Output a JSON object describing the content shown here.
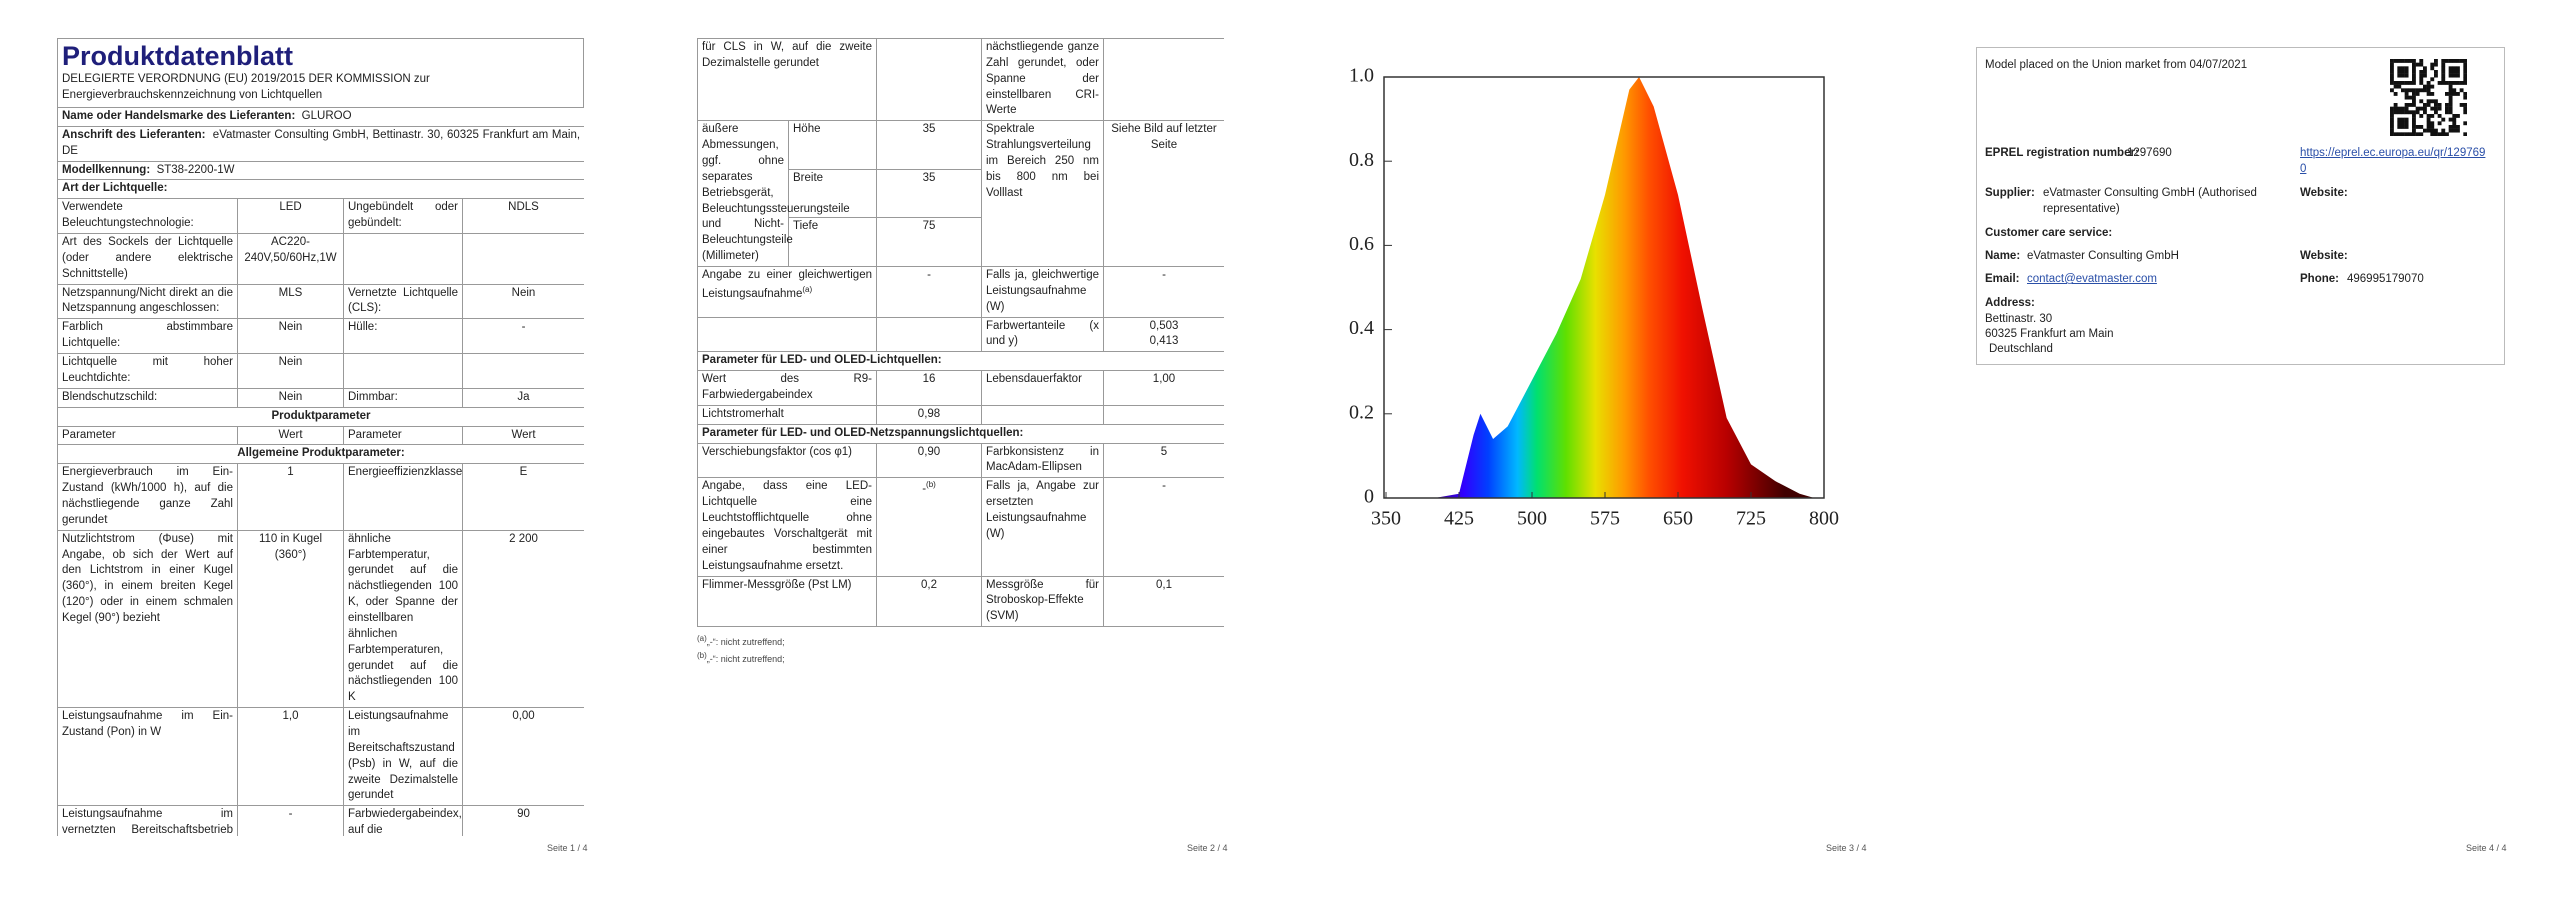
{
  "chart_data": {
    "type": "area",
    "x": [
      400,
      425,
      440,
      447,
      460,
      475,
      500,
      525,
      550,
      575,
      600,
      610,
      625,
      650,
      675,
      700,
      725,
      750,
      775,
      790
    ],
    "values": [
      0,
      0.01,
      0.15,
      0.2,
      0.14,
      0.17,
      0.28,
      0.39,
      0.52,
      0.72,
      0.97,
      1.0,
      0.93,
      0.72,
      0.45,
      0.19,
      0.08,
      0.04,
      0.01,
      0
    ],
    "xlim": [
      350,
      800
    ],
    "xticks": [
      350,
      425,
      500,
      575,
      650,
      725,
      800
    ],
    "ylim": [
      0,
      1
    ],
    "yticks": [
      {
        "value": 1,
        "label": "1.0"
      },
      0.8,
      0.6,
      0.4,
      0.2,
      0
    ]
  },
  "pages": [
    {
      "title": "Produktdatenblatt",
      "subtitle": "DELEGIERTE VERORDNUNG (EU) 2019/2015 DER KOMMISSION zur Energieverbrauchskennzeichnung von Lichtquellen",
      "rows": [
        {
          "label": "Name oder Handelsmarke des Lieferanten:",
          "value": "GLUROO"
        },
        {
          "label": "Anschrift des Lieferanten:",
          "value": "eVatmaster Consulting GmbH, Bettinastr. 30, 60325 Frankfurt am Main, DE"
        },
        {
          "label": "Modellkennung:",
          "value": "ST38-2200-1W"
        },
        {
          "heading": "Art der Lichtquelle:"
        },
        [
          "Verwendete Beleuchtungstechnologie:",
          "LED",
          "Ungebündelt oder gebündelt:",
          "NDLS"
        ],
        [
          "Art des Sockels der Lichtquelle (oder andere elektrische Schnittstelle)",
          "AC220-240V,50/60Hz,1W",
          null,
          null
        ],
        [
          "Netzspannung/Nicht direkt an die Netzspannung angeschlossen:",
          "MLS",
          "Vernetzte Lichtquelle (CLS):",
          "Nein"
        ],
        [
          "Farblich abstimmbare Lichtquelle:",
          "Nein",
          "Hülle:",
          "-"
        ],
        [
          "Lichtquelle mit hoher Leuchtdichte:",
          "Nein",
          null,
          null
        ],
        [
          "Blendschutzschild:",
          "Nein",
          "Dimmbar:",
          "Ja"
        ],
        {
          "section": "Produktparameter"
        },
        [
          "Parameter",
          "Wert",
          "Parameter",
          "Wert"
        ],
        {
          "section": "Allgemeine Produktparameter:"
        },
        [
          "Energieverbrauch im Ein-Zustand (kWh/1000 h), auf die nächstliegende ganze Zahl gerundet",
          "1",
          "Energieeffizienzklasse",
          "E"
        ],
        [
          "Nutzlichtstrom (Φuse) mit Angabe, ob sich der Wert auf den Lichtstrom in einer Kugel (360°), in einem breiten Kegel (120°) oder in einem schmalen Kegel (90°) bezieht",
          "110 in Kugel (360°)",
          "ähnliche Farbtemperatur, gerundet auf die nächstliegenden 100 K, oder Spanne der einstellbaren ähnlichen Farbtemperaturen, gerundet auf die nächstliegenden 100 K",
          "2 200"
        ],
        [
          "Leistungsaufnahme im Ein-Zustand (Pon) in W",
          "1,0",
          "Leistungsaufnahme im Bereitschaftszustand (Psb) in W, auf die zweite Dezimalstelle gerundet",
          "0,00"
        ],
        [
          "Leistungsaufnahme im vernetzten Bereitschaftsbetrieb (Pnet)",
          "-",
          "Farbwiedergabeindex, auf die",
          "90"
        ]
      ],
      "footer": "Seite 1 / 4"
    },
    {
      "rows": [
        [
          "für CLS in W, auf die zweite Dezimalstelle gerundet",
          null,
          "nächstliegende ganze Zahl gerundet, oder Spanne der einstellbaren CRI-Werte",
          null
        ],
        {
          "dim_label": "äußere Abmessungen, ggf. ohne separates Betriebsgerät, Beleuchtungssteuerungsteile und Nicht-Beleuchtungsteile (Millimeter)",
          "dims": [
            [
              "Höhe",
              "35"
            ],
            [
              "Breite",
              "35"
            ],
            [
              "Tiefe",
              "75"
            ]
          ],
          "param": "Spektrale Strahlungsverteilung im Bereich 250 nm bis 800 nm bei Volllast",
          "value": "Siehe Bild auf letzter Seite"
        },
        [
          {
            "text": "Angabe zu einer gleichwertigen Leistungsaufnahme",
            "sup": "(a)"
          },
          "-",
          "Falls ja, gleichwertige Leistungsaufnahme (W)",
          "-"
        ],
        [
          null,
          null,
          "Farbwertanteile (x und y)",
          [
            "0,503",
            "0,413"
          ]
        ],
        {
          "heading": "Parameter für LED- und OLED-Lichtquellen:"
        },
        [
          "Wert des R9-Farbwiedergabeindex",
          "16",
          "Lebensdauerfaktor",
          "1,00"
        ],
        [
          "Lichtstromerhalt",
          "0,98",
          null,
          null
        ],
        {
          "heading": "Parameter für LED- und OLED-Netzspannungslichtquellen:"
        },
        [
          "Verschiebungsfaktor (cos φ1)",
          "0,90",
          "Farbkonsistenz in MacAdam-Ellipsen",
          "5"
        ],
        [
          "Angabe, dass eine LED-Lichtquelle eine Leuchtstofflichtquelle ohne eingebautes Vorschaltgerät mit einer bestimmten Leistungsaufnahme ersetzt.",
          {
            "text": "-",
            "sup": "(b)"
          },
          "Falls ja, Angabe zur ersetzten Leistungsaufnahme (W)",
          "-"
        ],
        [
          "Flimmer-Messgröße (Pst LM)",
          "0,2",
          "Messgröße für Stroboskop-Effekte (SVM)",
          "0,1"
        ]
      ],
      "footnotes": [
        {
          "sup": "(a)",
          "text": "„-“: nicht zutreffend;"
        },
        {
          "sup": "(b)",
          "text": "„-“: nicht zutreffend;"
        }
      ],
      "footer": "Seite 2 / 4"
    },
    {
      "footer": "Seite 3 / 4"
    },
    {
      "placed": "Model placed on the Union market from 04/07/2021",
      "eprel": {
        "label": "EPREL registration number:",
        "value": "1297690",
        "link": "https://eprel.ec.europa.eu/qr/1297690"
      },
      "supplier": {
        "label": "Supplier:",
        "value": "eVatmaster Consulting GmbH (Authorised representative)",
        "website": "Website:"
      },
      "care": "Customer care service:",
      "name": {
        "label": "Name:",
        "value": "eVatmaster Consulting GmbH",
        "website": "Website:"
      },
      "email": {
        "label": "Email:",
        "value": "contact@evatmaster.com",
        "phone_label": "Phone:",
        "phone": "496995179070"
      },
      "address": {
        "label": "Address:",
        "lines": [
          "Bettinastr. 30",
          "60325 Frankfurt am Main",
          "Deutschland"
        ]
      },
      "footer": "Seite 4 / 4"
    }
  ]
}
